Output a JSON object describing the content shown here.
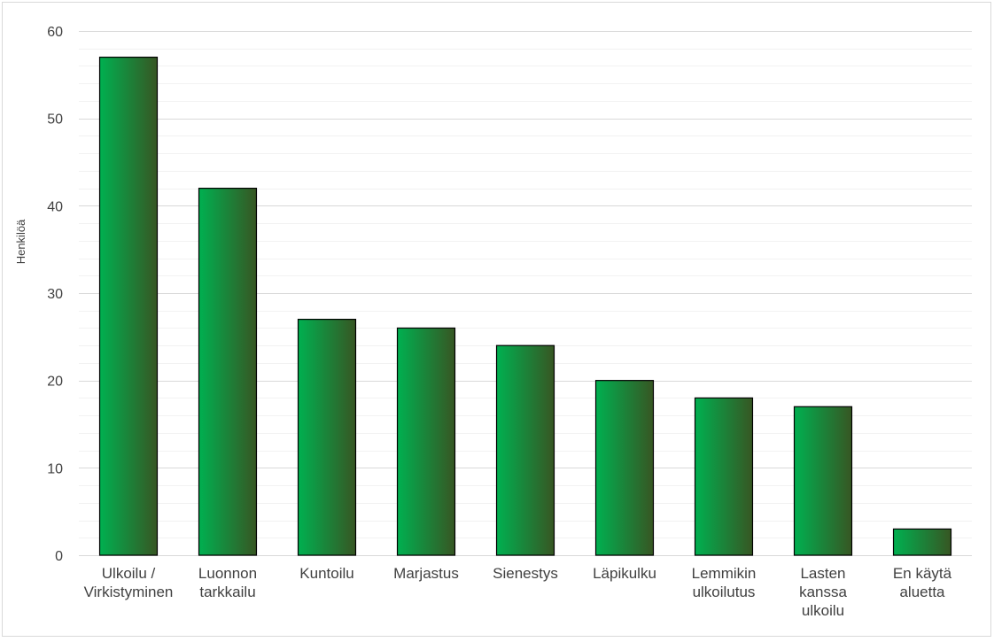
{
  "chart_data": {
    "type": "bar",
    "title": "",
    "xlabel": "",
    "ylabel": "Henkilöä",
    "ylim": [
      0,
      60
    ],
    "y_major_ticks": [
      0,
      10,
      20,
      30,
      40,
      50,
      60
    ],
    "y_minor_step": 2,
    "grid": true,
    "categories": [
      [
        "Ulkoilu /",
        "Virkistyminen"
      ],
      [
        "Luonnon",
        "tarkkailu"
      ],
      [
        "Kuntoilu"
      ],
      [
        "Marjastus"
      ],
      [
        "Sienestys"
      ],
      [
        "Läpikulku"
      ],
      [
        "Lemmikin",
        "ulkoilutus"
      ],
      [
        "Lasten",
        "kanssa",
        "ulkoilu"
      ],
      [
        "En käytä",
        "aluetta"
      ]
    ],
    "values": [
      57,
      42,
      27,
      26,
      24,
      20,
      18,
      17,
      3
    ],
    "colors": {
      "bar_gradient_start": "#00b050",
      "bar_gradient_end": "#375623",
      "bar_outline": "#000000",
      "gridline_major": "#d9d9d9",
      "gridline_minor": "#f2f2f2"
    }
  }
}
